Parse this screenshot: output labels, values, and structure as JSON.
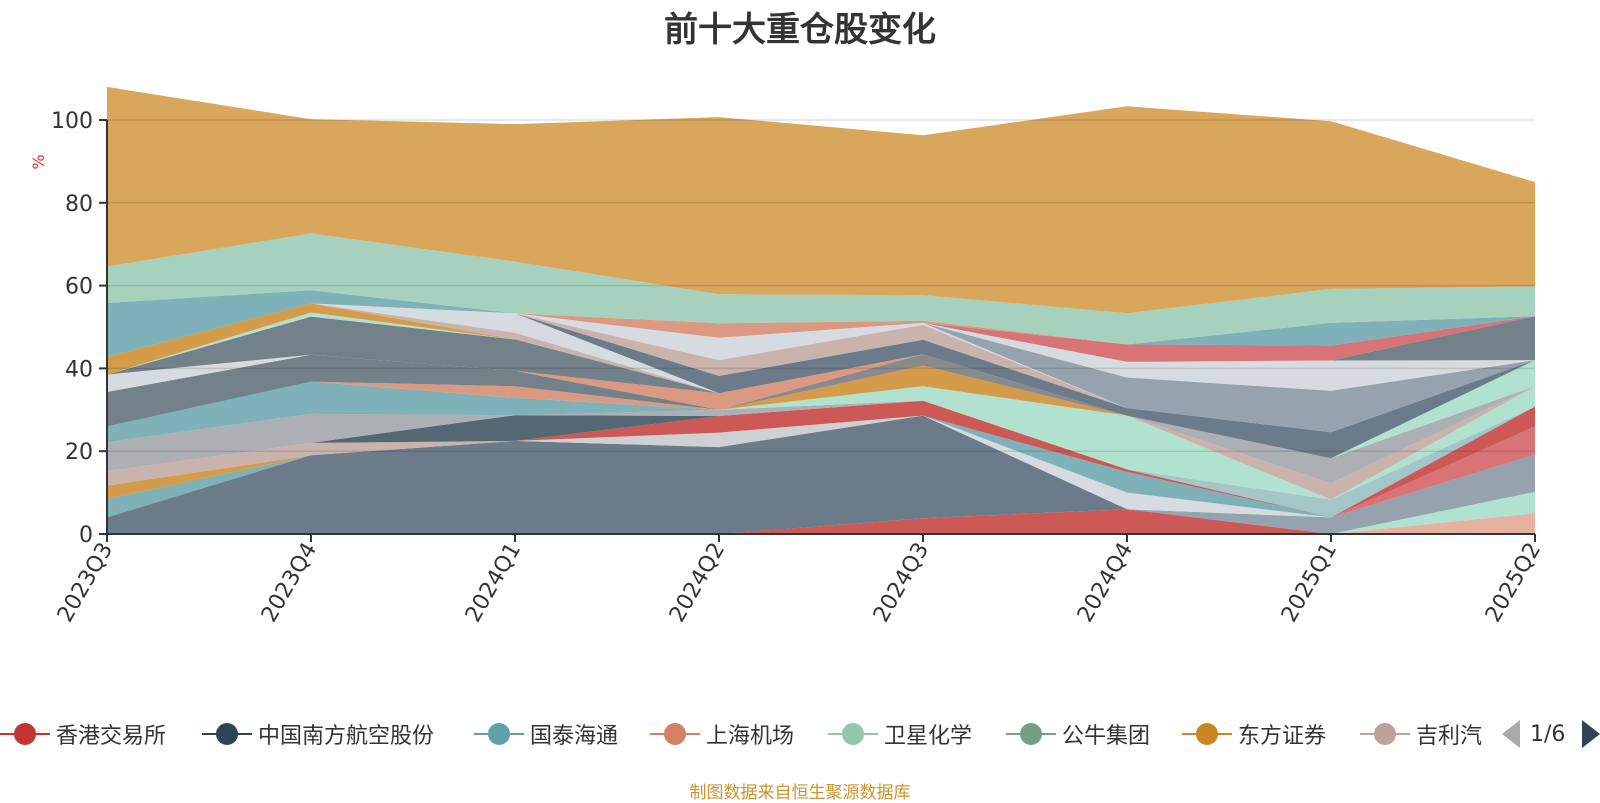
{
  "title": "前十大重仓股变化",
  "source_note": "制图数据来自恒生聚源数据库",
  "legend": {
    "visible_items": [
      "香港交易所",
      "中国南方航空股份",
      "国泰海通",
      "上海机场",
      "卫星化学",
      "公牛集团",
      "东方证券",
      "吉利汽"
    ],
    "page_indicator": "1/6",
    "prev_icon": "triangle-left-icon",
    "next_icon": "triangle-right-icon",
    "prev_color": "#aaaaaa",
    "next_color": "#2f4554"
  },
  "chart_data": {
    "type": "area",
    "stacked": true,
    "title": "前十大重仓股变化",
    "ylabel": "%",
    "ylim": [
      0,
      100
    ],
    "yticks": [
      0,
      20,
      40,
      60,
      80,
      100
    ],
    "categories": [
      "2023Q3",
      "2023Q4",
      "2024Q1",
      "2024Q2",
      "2024Q3",
      "2024Q4",
      "2025Q1",
      "2025Q2"
    ],
    "grid": true,
    "legend_position": "bottom",
    "series": [
      {
        "name": "香港交易所",
        "color": "#c23531",
        "values": [
          0,
          0,
          0,
          0,
          3.8,
          6,
          0,
          0
        ]
      },
      {
        "name": "",
        "color": "#e2a08e",
        "values": [
          0,
          0,
          0,
          0,
          0,
          0,
          0,
          5
        ]
      },
      {
        "name": "",
        "color": "#9fdcc4",
        "values": [
          0,
          0,
          0,
          0,
          0,
          0,
          0,
          5.2
        ]
      },
      {
        "name": "",
        "color": "#7f8f9e",
        "values": [
          0,
          0,
          0,
          0,
          0,
          0,
          4,
          9
        ]
      },
      {
        "name": "",
        "color": "#d0555a",
        "values": [
          0,
          0,
          0,
          0,
          0,
          0,
          0,
          6.8
        ]
      },
      {
        "name": "中国南方航空股份",
        "color": "#4b5e70",
        "values": [
          4,
          19,
          22.5,
          21,
          24.8,
          0,
          0,
          0
        ]
      },
      {
        "name": "",
        "color": "#ccd3da",
        "values": [
          0,
          0,
          0,
          0,
          0,
          4,
          0,
          0
        ]
      },
      {
        "name": "国泰海通",
        "color": "#61a0a8",
        "values": [
          4.5,
          0,
          0,
          0,
          0,
          5,
          0,
          0
        ]
      },
      {
        "name": "",
        "color": "#c3c7c9",
        "values": [
          0,
          0,
          0,
          3.5,
          0,
          0,
          0,
          0
        ]
      },
      {
        "name": "",
        "color": "#3f5468",
        "values": [
          0,
          0,
          0,
          0,
          0,
          0,
          0,
          0
        ]
      },
      {
        "name": "",
        "color": "#c23531",
        "values": [
          0,
          0,
          0,
          4,
          3.6,
          0.6,
          0,
          4.8
        ]
      },
      {
        "name": "东方证券",
        "color": "#ca8622",
        "values": [
          3.2,
          0,
          0,
          0,
          0,
          0,
          0,
          0
        ]
      },
      {
        "name": "",
        "color": "#8a8f92",
        "values": [
          0,
          0,
          0,
          0,
          0,
          0,
          0,
          0
        ]
      },
      {
        "name": "吉利汽车",
        "color": "#bda29a",
        "values": [
          3.5,
          3,
          0,
          0,
          0,
          0,
          0,
          0
        ]
      },
      {
        "name": "",
        "color": "#2f4554",
        "values": [
          0,
          0,
          6.2,
          0,
          0,
          0,
          0,
          0
        ]
      },
      {
        "name": "",
        "color": "#8fb9bd",
        "values": [
          0,
          0,
          0,
          0,
          0,
          0,
          4.3,
          0
        ]
      },
      {
        "name": "",
        "color": "#9a9ea3",
        "values": [
          7,
          7,
          0,
          1.5,
          0,
          0,
          0,
          0
        ]
      },
      {
        "name": "",
        "color": "#61a0a8",
        "values": [
          3.8,
          7.8,
          4.2,
          0,
          0,
          0,
          0,
          0
        ]
      },
      {
        "name": "",
        "color": "#9fdcc4",
        "values": [
          0,
          0,
          0,
          0,
          3.5,
          13,
          0,
          4.9
        ]
      },
      {
        "name": "",
        "color": "#d48265",
        "values": [
          0,
          0,
          2.8,
          0,
          0,
          0,
          0,
          0
        ]
      },
      {
        "name": "",
        "color": "#ca8622",
        "values": [
          0,
          0,
          0,
          0,
          5,
          0,
          0,
          0
        ]
      },
      {
        "name": "",
        "color": "#bda29a",
        "values": [
          0,
          0,
          0,
          0,
          0,
          0,
          4,
          0
        ]
      },
      {
        "name": "",
        "color": "#6e7074",
        "values": [
          0,
          0,
          0,
          0,
          2.7,
          0,
          0,
          0
        ]
      },
      {
        "name": "",
        "color": "#546570",
        "values": [
          8.3,
          6.5,
          3.7,
          0,
          0,
          0,
          0,
          0
        ]
      },
      {
        "name": "",
        "color": "#9a9ea3",
        "values": [
          0,
          0,
          0,
          0,
          0,
          0,
          6,
          0
        ]
      },
      {
        "name": "",
        "color": "#9fdcc4",
        "values": [
          0,
          0,
          0,
          0,
          0,
          0,
          0,
          6.3
        ]
      },
      {
        "name": "",
        "color": "#ccd3da",
        "values": [
          4.2,
          0,
          0,
          0,
          0,
          0,
          0,
          0
        ]
      },
      {
        "name": "",
        "color": "#d48265",
        "values": [
          0,
          0,
          0,
          4,
          0,
          0,
          0,
          0
        ]
      },
      {
        "name": "",
        "color": "#546570",
        "values": [
          0,
          9.2,
          7.6,
          0,
          0,
          0,
          0,
          0
        ]
      },
      {
        "name": "",
        "color": "#9fdcc4",
        "values": [
          0,
          1,
          0,
          0,
          0,
          0,
          0,
          0
        ]
      },
      {
        "name": "",
        "color": "#ca8622",
        "values": [
          4.3,
          2.2,
          0,
          0,
          0,
          0,
          0,
          0
        ]
      },
      {
        "name": "",
        "color": "#bda29a",
        "values": [
          0,
          0,
          1.6,
          0,
          0,
          0,
          0,
          0
        ]
      },
      {
        "name": "",
        "color": "#ccd3da",
        "values": [
          0,
          0,
          4.7,
          0,
          0,
          0,
          0,
          0
        ]
      },
      {
        "name": "",
        "color": "#4b5e70",
        "values": [
          0,
          0,
          0,
          4.2,
          3.5,
          1.8,
          6.3,
          0
        ]
      },
      {
        "name": "",
        "color": "#bda29a",
        "values": [
          0,
          0,
          0,
          3.8,
          3.6,
          0,
          0,
          0
        ]
      },
      {
        "name": "",
        "color": "#ccd3da",
        "values": [
          0,
          0,
          0,
          5.4,
          0.5,
          0,
          0,
          0
        ]
      },
      {
        "name": "",
        "color": "#7f8f9e",
        "values": [
          0,
          0,
          0,
          0,
          0,
          7.4,
          10,
          0
        ]
      },
      {
        "name": "",
        "color": "#ccd3da",
        "values": [
          0,
          0,
          0,
          0,
          0,
          3.8,
          7.3,
          0
        ]
      },
      {
        "name": "",
        "color": "#546570",
        "values": [
          0,
          0,
          0,
          0,
          0,
          0,
          0,
          10.6
        ]
      },
      {
        "name": "",
        "color": "#d0555a",
        "values": [
          0,
          0,
          0,
          0,
          0,
          4.2,
          3.6,
          0
        ]
      },
      {
        "name": "",
        "color": "#7f8f9e",
        "values": [
          0,
          0,
          0,
          0,
          0,
          0,
          0,
          0
        ]
      },
      {
        "name": "",
        "color": "#d48265",
        "values": [
          0,
          0,
          0,
          3.5,
          0.5,
          0,
          0,
          0
        ]
      },
      {
        "name": "",
        "color": "#61a0a8",
        "values": [
          13,
          3.2,
          0,
          0,
          0,
          0,
          5.5,
          0
        ]
      },
      {
        "name": "",
        "color": "#91c7ae",
        "values": [
          8.8,
          13.7,
          12.5,
          7,
          6.2,
          7.5,
          8.2,
          7.2
        ]
      },
      {
        "name": "",
        "color": "#d6a253",
        "values": [
          43.4,
          27.6,
          33.2,
          42.8,
          38.6,
          50,
          40.5,
          25.2
        ]
      }
    ]
  }
}
